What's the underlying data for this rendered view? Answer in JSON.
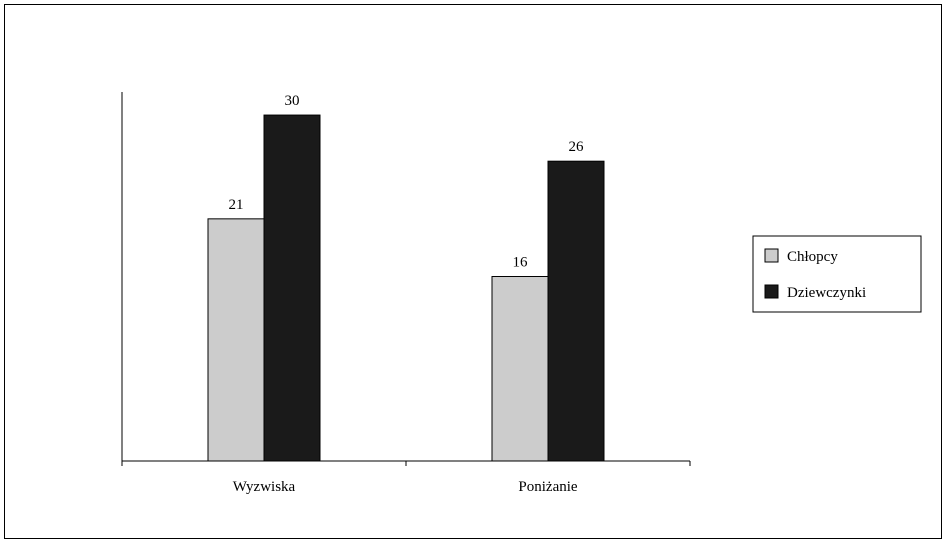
{
  "chart_data": {
    "type": "bar",
    "categories": [
      "Wyzwiska",
      "Poniżanie"
    ],
    "series": [
      {
        "name": "Chłopcy",
        "values": [
          21,
          16
        ],
        "color": "#cccccc"
      },
      {
        "name": "Dziewczynki",
        "values": [
          30,
          26
        ],
        "color": "#1a1a1a"
      }
    ],
    "ylim": [
      0,
      32
    ],
    "grid": false,
    "legend_position": "right"
  }
}
